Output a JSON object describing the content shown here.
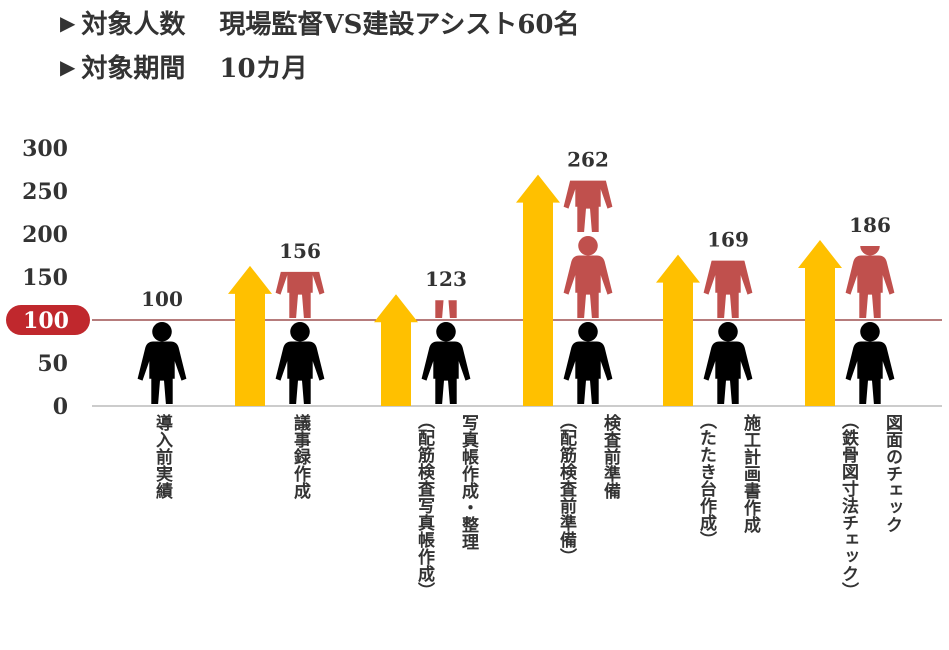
{
  "header": {
    "line1_label": "対象人数",
    "line1_value": "現場監督VS建設アシスト60名",
    "line2_label": "対象期間",
    "line2_value": "10カ月"
  },
  "colors": {
    "arrow": "#FFC000",
    "person_base": "#000000",
    "person_extra": "#C0504D",
    "baseline": "#8B2E2E",
    "baseline_badge": "#C0282D",
    "text": "#333333"
  },
  "chart_data": {
    "type": "bar",
    "ylim": [
      0,
      300
    ],
    "yticks": [
      "0",
      "50",
      "100",
      "150",
      "200",
      "250",
      "300"
    ],
    "reference_line": {
      "value": 100,
      "label": "100"
    },
    "categories": [
      {
        "label": "導入前実績",
        "sub": ""
      },
      {
        "label": "議事録作成",
        "sub": ""
      },
      {
        "label": "写真帳作成・整理",
        "sub": "（配筋検査写真帳作成）"
      },
      {
        "label": "検査前準備",
        "sub": "（配筋検査前準備）"
      },
      {
        "label": "施工計画書作成",
        "sub": "（たたき台作成）"
      },
      {
        "label": "図面のチェック",
        "sub": "（鉄骨図寸法チェック）"
      }
    ],
    "values": [
      100,
      156,
      123,
      262,
      169,
      186
    ],
    "data_labels": [
      "100",
      "156",
      "123",
      "262",
      "169",
      "186"
    ]
  }
}
